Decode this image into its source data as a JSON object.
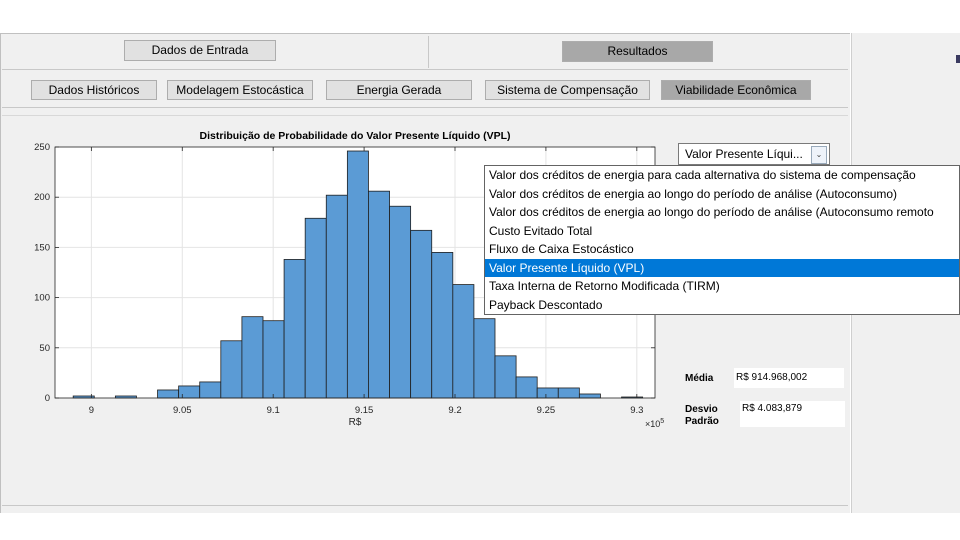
{
  "tabs": {
    "main": [
      {
        "label": "Dados de Entrada",
        "active": false
      },
      {
        "label": "Resultados",
        "active": true
      }
    ],
    "sub": [
      {
        "label": "Dados Históricos",
        "active": false
      },
      {
        "label": "Modelagem Estocástica",
        "active": false
      },
      {
        "label": "Energia Gerada",
        "active": false
      },
      {
        "label": "Sistema de Compensação",
        "active": false
      },
      {
        "label": "Viabilidade Econômica",
        "active": true
      }
    ]
  },
  "dropdown": {
    "selected_label": "Valor Presente Líqui...",
    "selected_index": 5,
    "options": [
      "Valor dos créditos de energia para cada alternativa do sistema de compensação",
      "Valor dos créditos de energia ao longo do período de análise (Autoconsumo)",
      "Valor dos créditos de energia ao longo do período de análise (Autoconsumo remoto",
      "Custo Evitado Total",
      "Fluxo de Caixa Estocástico",
      "Valor Presente Líquido (VPL)",
      "Taxa Interna de Retorno Modificada (TIRM)",
      "Payback Descontado"
    ]
  },
  "stats": {
    "mean_label": "Média",
    "mean_value": "R$ 914.968,002",
    "std_label_1": "Desvio",
    "std_label_2": "Padrão",
    "std_value": "R$ 4.083,879"
  },
  "chart_data": {
    "type": "bar",
    "title": "Distribuição de Probabilidade do Valor Presente Líquido (VPL)",
    "xlabel": "R$",
    "ylabel": "",
    "x_exponent_label": "×10",
    "x_exponent_power": "5",
    "xlim": [
      8.98,
      9.31
    ],
    "ylim": [
      0,
      250
    ],
    "xticks": [
      9,
      9.05,
      9.1,
      9.15,
      9.2,
      9.25,
      9.3
    ],
    "xtick_labels": [
      "9",
      "9.05",
      "9.1",
      "9.15",
      "9.2",
      "9.25",
      "9.3"
    ],
    "yticks": [
      0,
      50,
      100,
      150,
      200,
      250
    ],
    "ytick_labels": [
      "0",
      "50",
      "100",
      "150",
      "200",
      "250"
    ],
    "bar_color": "#5b9bd5",
    "bin_edges": [
      8.99,
      9.0016,
      9.0132,
      9.0248,
      9.0364,
      9.048,
      9.0596,
      9.0712,
      9.0828,
      9.0944,
      9.106,
      9.1176,
      9.1292,
      9.1408,
      9.1524,
      9.164,
      9.1756,
      9.1872,
      9.1988,
      9.2104,
      9.222,
      9.2336,
      9.2452,
      9.2568,
      9.2684,
      9.28,
      9.2916,
      9.3032
    ],
    "counts": [
      2,
      0,
      2,
      0,
      8,
      12,
      16,
      57,
      81,
      77,
      138,
      179,
      202,
      246,
      206,
      191,
      167,
      145,
      113,
      79,
      42,
      21,
      10,
      10,
      4,
      0,
      1
    ]
  }
}
